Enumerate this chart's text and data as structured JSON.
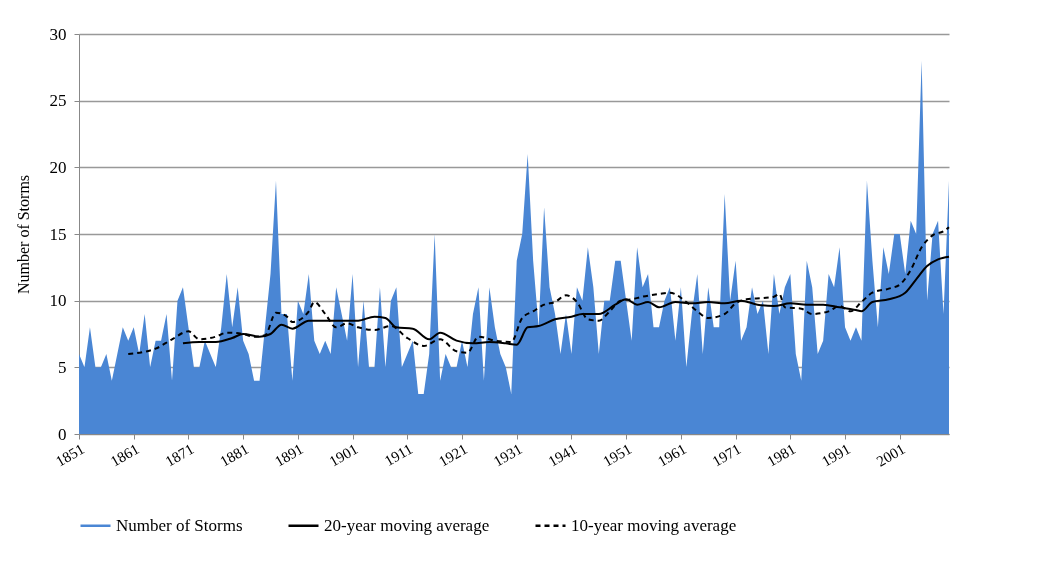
{
  "chart_data": {
    "type": "area",
    "ylabel": "Number of Storms",
    "xlim": [
      1851,
      2010
    ],
    "xticks": [
      1851,
      1861,
      1871,
      1881,
      1891,
      1901,
      1911,
      1921,
      1931,
      1941,
      1951,
      1961,
      1971,
      1981,
      1991,
      2001
    ],
    "ylim": [
      0,
      30
    ],
    "yticks": [
      0,
      5,
      10,
      15,
      20,
      25,
      30
    ],
    "grid": "y",
    "legend": "bottom",
    "x": [
      1851,
      1852,
      1853,
      1854,
      1855,
      1856,
      1857,
      1858,
      1859,
      1860,
      1861,
      1862,
      1863,
      1864,
      1865,
      1866,
      1867,
      1868,
      1869,
      1870,
      1871,
      1872,
      1873,
      1874,
      1875,
      1876,
      1877,
      1878,
      1879,
      1880,
      1881,
      1882,
      1883,
      1884,
      1885,
      1886,
      1887,
      1888,
      1889,
      1890,
      1891,
      1892,
      1893,
      1894,
      1895,
      1896,
      1897,
      1898,
      1899,
      1900,
      1901,
      1902,
      1903,
      1904,
      1905,
      1906,
      1907,
      1908,
      1909,
      1910,
      1911,
      1912,
      1913,
      1914,
      1915,
      1916,
      1917,
      1918,
      1919,
      1920,
      1921,
      1922,
      1923,
      1924,
      1925,
      1926,
      1927,
      1928,
      1929,
      1930,
      1931,
      1932,
      1933,
      1934,
      1935,
      1936,
      1937,
      1938,
      1939,
      1940,
      1941,
      1942,
      1943,
      1944,
      1945,
      1946,
      1947,
      1948,
      1949,
      1950,
      1951,
      1952,
      1953,
      1954,
      1955,
      1956,
      1957,
      1958,
      1959,
      1960,
      1961,
      1962,
      1963,
      1964,
      1965,
      1966,
      1967,
      1968,
      1969,
      1970,
      1971,
      1972,
      1973,
      1974,
      1975,
      1976,
      1977,
      1978,
      1979,
      1980,
      1981,
      1982,
      1983,
      1984,
      1985,
      1986,
      1987,
      1988,
      1989,
      1990,
      1991,
      1992,
      1993,
      1994,
      1995,
      1996,
      1997,
      1998,
      1999,
      2000,
      2001,
      2002,
      2003,
      2004,
      2005,
      2006,
      2007,
      2008,
      2009,
      2010
    ],
    "series": [
      {
        "name": "Number of Storms",
        "color": "#4a86d4",
        "values": [
          6,
          5,
          8,
          5,
          5,
          6,
          4,
          6,
          8,
          7,
          8,
          6,
          9,
          5,
          7,
          7,
          9,
          4,
          10,
          11,
          8,
          5,
          5,
          7,
          6,
          5,
          8,
          12,
          8,
          11,
          7,
          6,
          4,
          4,
          8,
          12,
          19,
          9,
          9,
          4,
          10,
          9,
          12,
          7,
          6,
          7,
          6,
          11,
          9,
          7,
          12,
          5,
          10,
          5,
          5,
          11,
          5,
          10,
          11,
          5,
          6,
          7,
          3,
          3,
          6,
          15,
          4,
          6,
          5,
          5,
          7,
          5,
          9,
          11,
          4,
          11,
          8,
          6,
          5,
          3,
          13,
          15,
          21,
          13,
          8,
          17,
          11,
          9,
          6,
          9,
          6,
          11,
          10,
          14,
          11,
          6,
          10,
          10,
          13,
          13,
          10,
          7,
          14,
          11,
          12,
          8,
          8,
          10,
          11,
          7,
          11,
          5,
          9,
          12,
          6,
          11,
          8,
          8,
          18,
          10,
          13,
          7,
          8,
          11,
          9,
          10,
          6,
          12,
          9,
          11,
          12,
          6,
          4,
          13,
          11,
          6,
          7,
          12,
          11,
          14,
          8,
          7,
          8,
          7,
          19,
          13,
          8,
          14,
          12,
          15,
          15,
          12,
          16,
          15,
          28,
          10,
          15,
          16,
          9,
          19
        ]
      },
      {
        "name": "20-year moving average",
        "type": "line",
        "color": "#000000",
        "line_style": "solid",
        "x": [
          1870,
          1873,
          1876,
          1879,
          1881,
          1884,
          1886,
          1888,
          1890,
          1893,
          1896,
          1899,
          1902,
          1905,
          1907,
          1909,
          1912,
          1915,
          1917,
          1920,
          1923,
          1926,
          1929,
          1931,
          1933,
          1935,
          1938,
          1941,
          1943,
          1946,
          1949,
          1951,
          1953,
          1955,
          1957,
          1960,
          1963,
          1966,
          1969,
          1972,
          1975,
          1978,
          1981,
          1984,
          1987,
          1990,
          1993,
          1994,
          1996,
          1999,
          2002,
          2004,
          2006,
          2008,
          2010
        ],
        "values": [
          6.8,
          6.9,
          6.9,
          7.2,
          7.5,
          7.3,
          7.5,
          8.2,
          7.9,
          8.5,
          8.5,
          8.5,
          8.5,
          8.8,
          8.7,
          8.0,
          7.9,
          7.1,
          7.6,
          7.0,
          6.8,
          6.9,
          6.8,
          6.7,
          8.0,
          8.1,
          8.6,
          8.8,
          9.0,
          9.0,
          9.7,
          10.1,
          9.7,
          9.9,
          9.5,
          9.9,
          9.8,
          9.9,
          9.8,
          10.0,
          9.7,
          9.6,
          9.8,
          9.7,
          9.7,
          9.5,
          9.3,
          9.2,
          9.9,
          10.1,
          10.6,
          11.6,
          12.6,
          13.1,
          13.3
        ]
      },
      {
        "name": "10-year moving average",
        "type": "line",
        "color": "#000000",
        "line_style": "dashed",
        "x": [
          1860,
          1865,
          1868,
          1871,
          1873,
          1876,
          1878,
          1881,
          1883,
          1885,
          1887,
          1889,
          1890,
          1893,
          1894,
          1896,
          1898,
          1900,
          1902,
          1905,
          1908,
          1911,
          1914,
          1917,
          1920,
          1922,
          1924,
          1927,
          1930,
          1932,
          1934,
          1936,
          1938,
          1940,
          1942,
          1944,
          1946,
          1948,
          1950,
          1952,
          1954,
          1957,
          1959,
          1962,
          1964,
          1966,
          1969,
          1971,
          1973,
          1976,
          1978,
          1979,
          1980,
          1983,
          1985,
          1988,
          1990,
          1992,
          1994,
          1996,
          1999,
          2001,
          2003,
          2005,
          2007,
          2009,
          2010
        ],
        "values": [
          6.0,
          6.4,
          7.1,
          7.7,
          7.1,
          7.3,
          7.6,
          7.5,
          7.3,
          7.4,
          9.1,
          8.8,
          8.4,
          9.2,
          9.9,
          9.0,
          8.0,
          8.3,
          8.0,
          7.8,
          8.1,
          7.2,
          6.6,
          7.1,
          6.2,
          6.1,
          7.3,
          7.0,
          6.9,
          8.7,
          9.2,
          9.7,
          9.9,
          10.4,
          9.9,
          8.6,
          8.5,
          9.2,
          10.0,
          10.1,
          10.3,
          10.5,
          10.6,
          9.9,
          9.2,
          8.7,
          9.0,
          9.8,
          10.1,
          10.2,
          10.3,
          10.5,
          9.5,
          9.4,
          9.0,
          9.2,
          9.6,
          9.2,
          9.9,
          10.6,
          10.9,
          11.2,
          12.3,
          14.0,
          14.9,
          15.2,
          15.5
        ]
      }
    ]
  }
}
